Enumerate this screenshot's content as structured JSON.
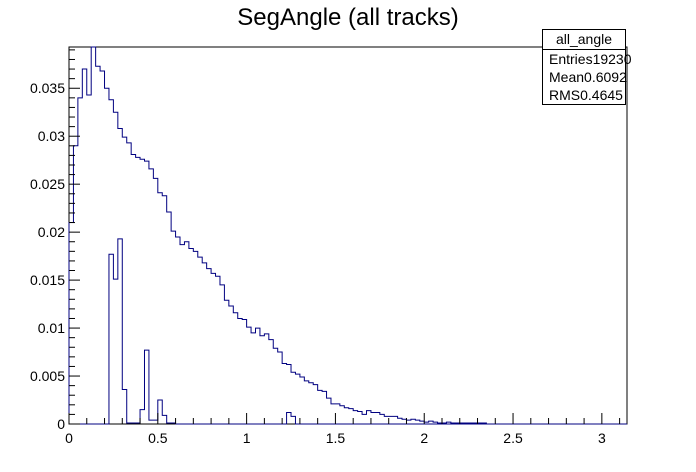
{
  "chart_data": {
    "type": "histogram",
    "title": "SegAngle (all tracks)",
    "xlim": [
      0,
      3.1416
    ],
    "ylim": [
      0,
      0.0393
    ],
    "bin_width": 0.025,
    "x_ticks": [
      0,
      0.5,
      1,
      1.5,
      2,
      2.5,
      3
    ],
    "x_tick_labels": [
      "0",
      "0.5",
      "1",
      "1.5",
      "2",
      "2.5",
      "3"
    ],
    "y_ticks": [
      0,
      0.005,
      0.01,
      0.015,
      0.02,
      0.025,
      0.03,
      0.035
    ],
    "y_tick_labels": [
      "0",
      "0.005",
      "0.01",
      "0.015",
      "0.02",
      "0.025",
      "0.03",
      "0.035"
    ],
    "series": [
      {
        "values": [
          0.021,
          0.029,
          0.034,
          0.037,
          0.0343,
          0.0393,
          0.0373,
          0.0368,
          0.035,
          0.0338,
          0.0325,
          0.0308,
          0.0299,
          0.0293,
          0.0281,
          0.0278,
          0.0276,
          0.0274,
          0.0266,
          0.0256,
          0.0241,
          0.0238,
          0.0221,
          0.0201,
          0.0195,
          0.0187,
          0.019,
          0.0183,
          0.018,
          0.0174,
          0.0168,
          0.0162,
          0.0157,
          0.0154,
          0.0145,
          0.0129,
          0.0123,
          0.0116,
          0.011,
          0.0109,
          0.0101,
          0.0095,
          0.01,
          0.0092,
          0.0094,
          0.0088,
          0.0079,
          0.0075,
          0.0063,
          0.0062,
          0.0054,
          0.0052,
          0.0049,
          0.0045,
          0.0043,
          0.0041,
          0.0035,
          0.0034,
          0.0027,
          0.0021,
          0.0021,
          0.0019,
          0.0017,
          0.0016,
          0.0014,
          0.0013,
          0.001,
          0.0014,
          0.0012,
          0.0012,
          0.001,
          0.0008,
          0.0008,
          0.0008,
          0.0006,
          0.0005,
          0.0004,
          0.0005,
          0.0004,
          0.0003,
          0.0002,
          0.0003,
          0.0002,
          0.0001,
          0.0001,
          0.0002,
          0.0001,
          0.0001,
          0.0001,
          0.0001,
          0.0001,
          0.0001,
          0.0001,
          0.0001,
          0,
          0,
          0,
          0,
          0,
          0,
          0,
          0,
          0,
          0,
          0,
          0,
          0,
          0,
          0,
          0,
          0,
          0,
          0,
          0,
          0,
          0,
          0,
          0,
          0,
          0,
          0,
          0,
          0,
          0,
          0,
          0
        ]
      },
      {
        "values": [
          0,
          0,
          0,
          0,
          0,
          0,
          0,
          0,
          0,
          0.0177,
          0.0151,
          0.0193,
          0.0036,
          0.0001,
          0.0001,
          0.0001,
          0.0015,
          0.0077,
          0.0004,
          0.0004,
          0.0025,
          0.0009,
          0.0001,
          0.0001,
          0,
          0,
          0,
          0,
          0,
          0,
          0,
          0,
          0,
          0,
          0,
          0,
          0,
          0,
          0,
          0,
          0,
          0,
          0,
          0,
          0,
          0,
          0,
          0,
          0,
          0.0012,
          0.0008,
          0,
          0,
          0,
          0,
          0,
          0,
          0,
          0,
          0,
          0,
          0,
          0,
          0,
          0,
          0,
          0,
          0,
          0,
          0,
          0,
          0,
          0,
          0,
          0,
          0,
          0,
          0,
          0,
          0,
          0,
          0,
          0,
          0,
          0,
          0,
          0,
          0,
          0,
          0,
          0,
          0,
          0,
          0,
          0,
          0,
          0,
          0,
          0,
          0,
          0,
          0,
          0,
          0,
          0,
          0,
          0,
          0,
          0,
          0,
          0,
          0,
          0,
          0,
          0,
          0,
          0,
          0,
          0,
          0,
          0,
          0,
          0,
          0
        ]
      }
    ],
    "stats_box": {
      "name": "all_angle",
      "entries_label": "Entries",
      "entries": "19230",
      "mean_label": "Mean",
      "mean": "0.6092",
      "rms_label": "RMS",
      "rms": "0.4645"
    },
    "colors": {
      "series1": "#000080",
      "series2": "#000080",
      "axis": "#000000"
    }
  }
}
